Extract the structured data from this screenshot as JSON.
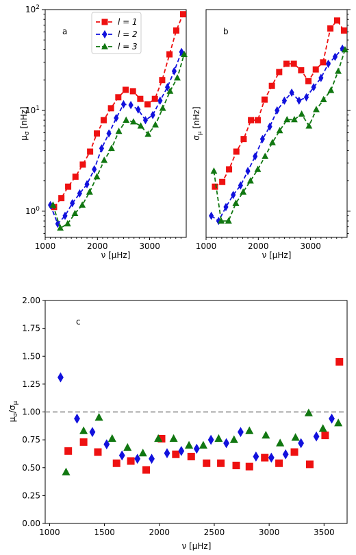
{
  "colors": {
    "l1": "#ee1111",
    "l2": "#1111dd",
    "l3": "#117711",
    "refline": "#808080"
  },
  "chart_data": [
    {
      "type": "line",
      "panel": "a",
      "ylabel": "μ_σ [nHz]",
      "xlabel": "ν [μHz]",
      "yscale": "log",
      "xlim": [
        1000,
        3700
      ],
      "ylim": [
        0.55,
        100
      ],
      "xticks": [
        1000,
        2000,
        3000
      ],
      "xticklabels": [
        "1000",
        "2000",
        "3000"
      ],
      "yticklabels": [
        "10^0",
        "10^1",
        "10^2"
      ],
      "legend": {
        "placement": "top-center",
        "entries": [
          "l = 1",
          "l = 2",
          "l = 3"
        ]
      },
      "series": [
        {
          "name": "l = 1",
          "marker": "square",
          "color": "l1",
          "x": [
            1170,
            1310,
            1440,
            1580,
            1720,
            1860,
            1990,
            2120,
            2260,
            2400,
            2540,
            2680,
            2820,
            2960,
            3100,
            3240,
            3380,
            3510,
            3640
          ],
          "y": [
            1.1,
            1.35,
            1.75,
            2.2,
            2.9,
            3.9,
            5.9,
            8.0,
            10.5,
            13.5,
            16.0,
            15.5,
            13.0,
            11.5,
            13.0,
            20.0,
            36.0,
            62.0,
            90.0
          ]
        },
        {
          "name": "l = 2",
          "marker": "diamond",
          "color": "l2",
          "x": [
            1100,
            1240,
            1380,
            1520,
            1660,
            1800,
            1940,
            2080,
            2220,
            2360,
            2500,
            2640,
            2780,
            2920,
            3060,
            3200,
            3340,
            3470,
            3610
          ],
          "y": [
            1.15,
            0.75,
            0.9,
            1.2,
            1.5,
            1.85,
            2.6,
            4.2,
            5.9,
            8.4,
            11.5,
            11.3,
            10.2,
            8.0,
            9.0,
            12.5,
            17.0,
            24.5,
            38.0
          ]
        },
        {
          "name": "l = 3",
          "marker": "triangle",
          "color": "l3",
          "x": [
            1150,
            1290,
            1430,
            1570,
            1710,
            1850,
            1990,
            2130,
            2270,
            2410,
            2550,
            2690,
            2830,
            2970,
            3110,
            3250,
            3390,
            3530,
            3660
          ],
          "y": [
            1.15,
            0.68,
            0.75,
            0.95,
            1.15,
            1.55,
            2.2,
            3.2,
            4.2,
            6.2,
            8.0,
            7.7,
            7.0,
            5.8,
            7.2,
            10.5,
            15.5,
            21.0,
            36.0
          ]
        }
      ]
    },
    {
      "type": "line",
      "panel": "b",
      "ylabel": "σ_μ [nHz]",
      "xlabel": "ν [μHz]",
      "yscale": "log",
      "xlim": [
        1000,
        3700
      ],
      "ylim": [
        0.55,
        100
      ],
      "xticks": [
        1000,
        2000,
        3000
      ],
      "xticklabels": [
        "1000",
        "2000",
        "3000"
      ],
      "series": [
        {
          "name": "l = 1",
          "marker": "square",
          "color": "l1",
          "x": [
            1170,
            1310,
            1440,
            1580,
            1720,
            1860,
            1990,
            2120,
            2260,
            2400,
            2540,
            2680,
            2820,
            2960,
            3100,
            3240,
            3380,
            3510,
            3640
          ],
          "y": [
            1.75,
            1.95,
            2.6,
            3.9,
            5.2,
            8.0,
            8.0,
            12.8,
            17.5,
            24.0,
            29.0,
            29.0,
            25.0,
            19.5,
            25.5,
            30.0,
            65.0,
            78.0,
            62.0
          ]
        },
        {
          "name": "l = 2",
          "marker": "diamond",
          "color": "l2",
          "x": [
            1100,
            1240,
            1380,
            1520,
            1660,
            1800,
            1940,
            2080,
            2220,
            2360,
            2500,
            2640,
            2780,
            2920,
            3060,
            3200,
            3340,
            3470,
            3610
          ],
          "y": [
            0.9,
            0.8,
            1.1,
            1.45,
            1.8,
            2.5,
            3.5,
            5.2,
            6.9,
            10.0,
            12.5,
            15.0,
            12.5,
            13.5,
            17.0,
            21.0,
            29.0,
            34.0,
            41.0
          ]
        },
        {
          "name": "l = 3",
          "marker": "triangle",
          "color": "l3",
          "x": [
            1150,
            1290,
            1430,
            1570,
            1710,
            1850,
            1990,
            2130,
            2270,
            2410,
            2550,
            2690,
            2830,
            2970,
            3110,
            3250,
            3390,
            3530,
            3660
          ],
          "y": [
            2.5,
            0.8,
            0.8,
            1.2,
            1.55,
            2.0,
            2.6,
            3.5,
            4.8,
            6.3,
            8.1,
            8.1,
            9.2,
            7.0,
            10.2,
            12.8,
            15.8,
            24.5,
            40.0
          ]
        }
      ]
    },
    {
      "type": "scatter",
      "panel": "c",
      "ylabel": "μ_σ/σ_μ",
      "xlabel": "ν [μHz]",
      "xlim": [
        960,
        3710
      ],
      "ylim": [
        0.0,
        2.0
      ],
      "xticks": [
        1000,
        1500,
        2000,
        2500,
        3000,
        3500
      ],
      "xticklabels": [
        "1000",
        "1500",
        "2000",
        "2500",
        "3000",
        "3500"
      ],
      "yticks": [
        0.0,
        0.25,
        0.5,
        0.75,
        1.0,
        1.25,
        1.5,
        1.75,
        2.0
      ],
      "yticklabels": [
        "0.00",
        "0.25",
        "0.50",
        "0.75",
        "1.00",
        "1.25",
        "1.50",
        "1.75",
        "2.00"
      ],
      "reference_line": 1.0,
      "series": [
        {
          "name": "l = 1",
          "marker": "square",
          "color": "l1",
          "x": [
            1170,
            1310,
            1440,
            1610,
            1740,
            1880,
            2020,
            2150,
            2290,
            2430,
            2560,
            2700,
            2820,
            2960,
            3090,
            3230,
            3370,
            3510,
            3640
          ],
          "y": [
            0.65,
            0.73,
            0.64,
            0.54,
            0.56,
            0.48,
            0.76,
            0.62,
            0.6,
            0.54,
            0.54,
            0.52,
            0.51,
            0.59,
            0.54,
            0.64,
            0.53,
            0.79,
            1.45
          ]
        },
        {
          "name": "l = 2",
          "marker": "diamond",
          "color": "l2",
          "x": [
            1100,
            1250,
            1390,
            1520,
            1660,
            1800,
            1930,
            2070,
            2200,
            2340,
            2470,
            2610,
            2740,
            2880,
            3020,
            3150,
            3290,
            3430,
            3570
          ],
          "y": [
            1.31,
            0.94,
            0.82,
            0.71,
            0.61,
            0.58,
            0.58,
            0.63,
            0.65,
            0.67,
            0.75,
            0.72,
            0.82,
            0.6,
            0.59,
            0.62,
            0.72,
            0.78,
            0.94
          ]
        },
        {
          "name": "l = 3",
          "marker": "triangle",
          "color": "l3",
          "x": [
            1150,
            1310,
            1450,
            1570,
            1710,
            1850,
            1990,
            2130,
            2270,
            2400,
            2540,
            2680,
            2820,
            2970,
            3100,
            3240,
            3360,
            3490,
            3630
          ],
          "y": [
            0.46,
            0.83,
            0.95,
            0.76,
            0.68,
            0.63,
            0.76,
            0.76,
            0.7,
            0.7,
            0.76,
            0.75,
            0.83,
            0.79,
            0.72,
            0.77,
            0.99,
            0.85,
            0.9
          ]
        }
      ]
    }
  ],
  "panel_labels": {
    "a": "a",
    "b": "b",
    "c": "c"
  },
  "legend_labels": [
    "l = 1",
    "l = 2",
    "l = 3"
  ]
}
